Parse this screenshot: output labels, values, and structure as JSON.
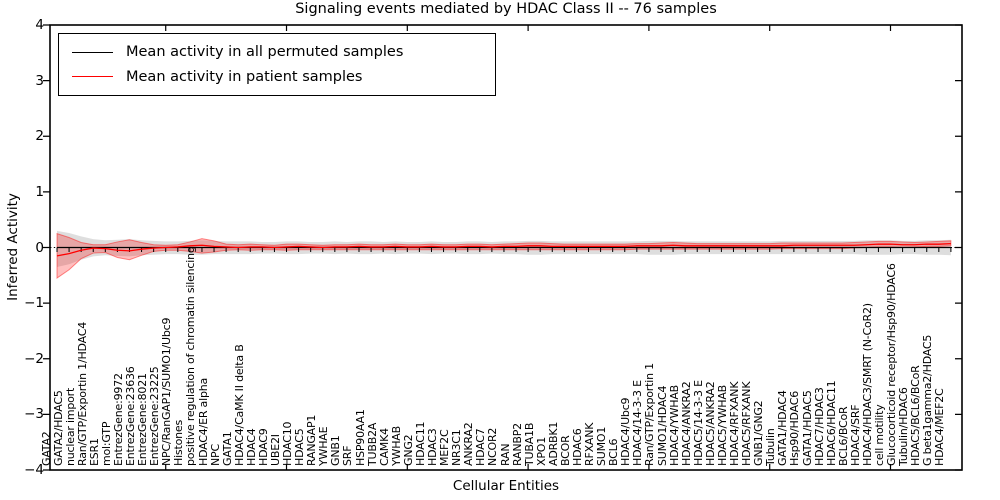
{
  "title": "Signaling events mediated by HDAC Class II -- 76 samples",
  "legend": {
    "items": [
      {
        "label": "Mean activity in all permuted samples",
        "color": "#000000"
      },
      {
        "label": "Mean activity in patient samples",
        "color": "#ff0000"
      }
    ]
  },
  "axes": {
    "ylabel": "Inferred Activity",
    "xlabel": "Cellular Entities",
    "yticks": [
      "4",
      "3",
      "2",
      "1",
      "0",
      "−1",
      "−2",
      "−3",
      "−4"
    ],
    "ytick_values": [
      4,
      3,
      2,
      1,
      0,
      -1,
      -2,
      -3,
      -4
    ]
  },
  "chart_data": {
    "type": "line",
    "title": "Signaling events mediated by HDAC Class II -- 76 samples",
    "xlabel": "Cellular Entities",
    "ylabel": "Inferred Activity",
    "ylim": [
      -4,
      4
    ],
    "grid": false,
    "legend_position": "upper left",
    "zero_line": "black dotted",
    "categories": [
      "GATA2",
      "GATA2/HDAC5",
      "nuclear import",
      "Ran/GTP/Exportin 1/HDAC4",
      "ESR1",
      "mol:GTP",
      "EntrezGene:9972",
      "EntrezGene:23636",
      "EntrezGene:8021",
      "EntrezGene:23225",
      "NPC/RanGAP1/SUMO1/Ubc9",
      "Histones",
      "positive regulation of chromatin silencing",
      "HDAC4/ER alpha",
      "NPC",
      "GATA1",
      "HDAC4/CaMK II delta B",
      "HDAC4",
      "HDAC9",
      "UBE2I",
      "HDAC10",
      "HDAC5",
      "RANGAP1",
      "YWHAE",
      "GNB1",
      "SRF",
      "HSP90AA1",
      "TUBB2A",
      "CAMK4",
      "YWHAB",
      "GNG2",
      "HDAC11",
      "HDAC3",
      "MEF2C",
      "NR3C1",
      "ANKRA2",
      "HDAC7",
      "NCOR2",
      "RAN",
      "RANBP2",
      "TUBA1B",
      "XPO1",
      "ADRBK1",
      "BCOR",
      "HDAC6",
      "RFXANK",
      "SUMO1",
      "BCL6",
      "HDAC4/Ubc9",
      "HDAC4/14-3-3 E",
      "Ran/GTP/Exportin 1",
      "SUMO1/HDAC4",
      "HDAC4/YWHAB",
      "HDAC4/ANKRA2",
      "HDAC5/14-3-3 E",
      "HDAC5/ANKRA2",
      "HDAC5/YWHAB",
      "HDAC4/RFXANK",
      "HDAC5/RFXANK",
      "GNB1/GNG2",
      "Tubulin",
      "GATA1/HDAC4",
      "Hsp90/HDAC6",
      "GATA1/HDAC5",
      "HDAC7/HDAC3",
      "HDAC6/HDAC11",
      "BCL6/BCoR",
      "HDAC4/SRF",
      "HDAC4/HDAC3/SMRT (N-CoR2)",
      "cell motility",
      "Glucocorticoid receptor/Hsp90/HDAC6",
      "Tubulin/HDAC6",
      "HDAC5/BCL6/BCoR",
      "G beta1gamma2/HDAC5",
      "HDAC4/MEF2C"
    ],
    "series": [
      {
        "name": "Mean activity in all permuted samples",
        "color": "#000000",
        "values": [
          0,
          0,
          0,
          0,
          0,
          0,
          0,
          0,
          0,
          0,
          0,
          0,
          0,
          0,
          0,
          0,
          0,
          0,
          0,
          0,
          0,
          0,
          0,
          0,
          0,
          0,
          0,
          0,
          0,
          0,
          0,
          0,
          0,
          0,
          0,
          0,
          0,
          0,
          0,
          0,
          0,
          0,
          0,
          0,
          0,
          0,
          0,
          0,
          0,
          0,
          0,
          0,
          0,
          0,
          0,
          0,
          0,
          0,
          0,
          0,
          0,
          0,
          0,
          0,
          0,
          0,
          0,
          0,
          0,
          0,
          0,
          0,
          0,
          0,
          0
        ]
      },
      {
        "name": "Mean activity in patient samples",
        "color": "#ff0000",
        "values": [
          -0.15,
          -0.11,
          -0.05,
          -0.01,
          -0.02,
          -0.05,
          -0.06,
          -0.03,
          -0.01,
          0.0,
          0.01,
          0.03,
          0.04,
          0.02,
          0.01,
          0.0,
          0.01,
          0.01,
          0.0,
          0.01,
          0.02,
          0.01,
          0.0,
          0.01,
          0.01,
          0.02,
          0.01,
          0.01,
          0.02,
          0.01,
          0.01,
          0.02,
          0.01,
          0.01,
          0.02,
          0.02,
          0.01,
          0.02,
          0.02,
          0.03,
          0.03,
          0.02,
          0.02,
          0.02,
          0.02,
          0.02,
          0.02,
          0.02,
          0.03,
          0.03,
          0.03,
          0.04,
          0.03,
          0.03,
          0.03,
          0.03,
          0.03,
          0.03,
          0.03,
          0.03,
          0.03,
          0.04,
          0.04,
          0.04,
          0.04,
          0.04,
          0.04,
          0.05,
          0.06,
          0.06,
          0.05,
          0.05,
          0.06,
          0.06,
          0.07
        ]
      }
    ],
    "bands": [
      {
        "name": "permuted samples range",
        "color": "gray",
        "upper": [
          0.3,
          0.26,
          0.2,
          0.15,
          0.13,
          0.14,
          0.15,
          0.13,
          0.12,
          0.11,
          0.11,
          0.12,
          0.13,
          0.12,
          0.11,
          0.11,
          0.11,
          0.1,
          0.1,
          0.11,
          0.11,
          0.1,
          0.1,
          0.11,
          0.1,
          0.11,
          0.11,
          0.1,
          0.11,
          0.1,
          0.1,
          0.11,
          0.1,
          0.1,
          0.11,
          0.11,
          0.1,
          0.11,
          0.11,
          0.12,
          0.12,
          0.11,
          0.11,
          0.11,
          0.11,
          0.11,
          0.11,
          0.11,
          0.11,
          0.12,
          0.12,
          0.12,
          0.11,
          0.11,
          0.11,
          0.11,
          0.11,
          0.11,
          0.11,
          0.11,
          0.12,
          0.12,
          0.12,
          0.12,
          0.12,
          0.12,
          0.12,
          0.13,
          0.13,
          0.13,
          0.12,
          0.12,
          0.13,
          0.13,
          0.14
        ],
        "lower": [
          -0.35,
          -0.3,
          -0.22,
          -0.16,
          -0.14,
          -0.15,
          -0.16,
          -0.14,
          -0.13,
          -0.12,
          -0.12,
          -0.13,
          -0.13,
          -0.12,
          -0.12,
          -0.12,
          -0.12,
          -0.11,
          -0.11,
          -0.12,
          -0.12,
          -0.11,
          -0.11,
          -0.12,
          -0.11,
          -0.12,
          -0.12,
          -0.11,
          -0.12,
          -0.11,
          -0.11,
          -0.12,
          -0.11,
          -0.11,
          -0.12,
          -0.12,
          -0.11,
          -0.12,
          -0.12,
          -0.13,
          -0.13,
          -0.12,
          -0.12,
          -0.12,
          -0.12,
          -0.12,
          -0.12,
          -0.12,
          -0.12,
          -0.13,
          -0.13,
          -0.13,
          -0.12,
          -0.12,
          -0.12,
          -0.12,
          -0.12,
          -0.12,
          -0.12,
          -0.12,
          -0.12,
          -0.12,
          -0.12,
          -0.12,
          -0.12,
          -0.12,
          -0.12,
          -0.13,
          -0.13,
          -0.13,
          -0.12,
          -0.12,
          -0.13,
          -0.13,
          -0.14
        ]
      },
      {
        "name": "patient samples range",
        "color": "red",
        "upper": [
          0.25,
          0.18,
          0.09,
          0.05,
          0.05,
          0.1,
          0.14,
          0.09,
          0.05,
          0.04,
          0.05,
          0.1,
          0.16,
          0.12,
          0.06,
          0.05,
          0.06,
          0.05,
          0.04,
          0.06,
          0.06,
          0.05,
          0.04,
          0.05,
          0.05,
          0.06,
          0.05,
          0.05,
          0.06,
          0.05,
          0.05,
          0.06,
          0.05,
          0.05,
          0.06,
          0.06,
          0.05,
          0.06,
          0.07,
          0.08,
          0.08,
          0.07,
          0.06,
          0.06,
          0.06,
          0.06,
          0.06,
          0.06,
          0.07,
          0.07,
          0.08,
          0.09,
          0.08,
          0.07,
          0.07,
          0.07,
          0.07,
          0.07,
          0.07,
          0.07,
          0.08,
          0.08,
          0.08,
          0.08,
          0.08,
          0.08,
          0.09,
          0.1,
          0.11,
          0.11,
          0.1,
          0.09,
          0.1,
          0.11,
          0.12
        ],
        "lower": [
          -0.55,
          -0.4,
          -0.2,
          -0.1,
          -0.09,
          -0.18,
          -0.22,
          -0.14,
          -0.07,
          -0.05,
          -0.05,
          -0.07,
          -0.1,
          -0.08,
          -0.05,
          -0.04,
          -0.05,
          -0.04,
          -0.04,
          -0.05,
          -0.04,
          -0.04,
          -0.04,
          -0.04,
          -0.04,
          -0.04,
          -0.04,
          -0.04,
          -0.04,
          -0.04,
          -0.04,
          -0.04,
          -0.04,
          -0.04,
          -0.04,
          -0.04,
          -0.04,
          -0.04,
          -0.04,
          -0.04,
          -0.04,
          -0.04,
          -0.04,
          -0.04,
          -0.04,
          -0.04,
          -0.04,
          -0.04,
          -0.03,
          -0.03,
          -0.03,
          -0.03,
          -0.03,
          -0.03,
          -0.03,
          -0.03,
          -0.03,
          -0.03,
          -0.03,
          -0.03,
          -0.02,
          -0.02,
          -0.02,
          -0.02,
          -0.02,
          -0.02,
          -0.01,
          0.0,
          0.01,
          0.01,
          0.0,
          0.01,
          0.02,
          0.02,
          0.03
        ]
      }
    ]
  }
}
